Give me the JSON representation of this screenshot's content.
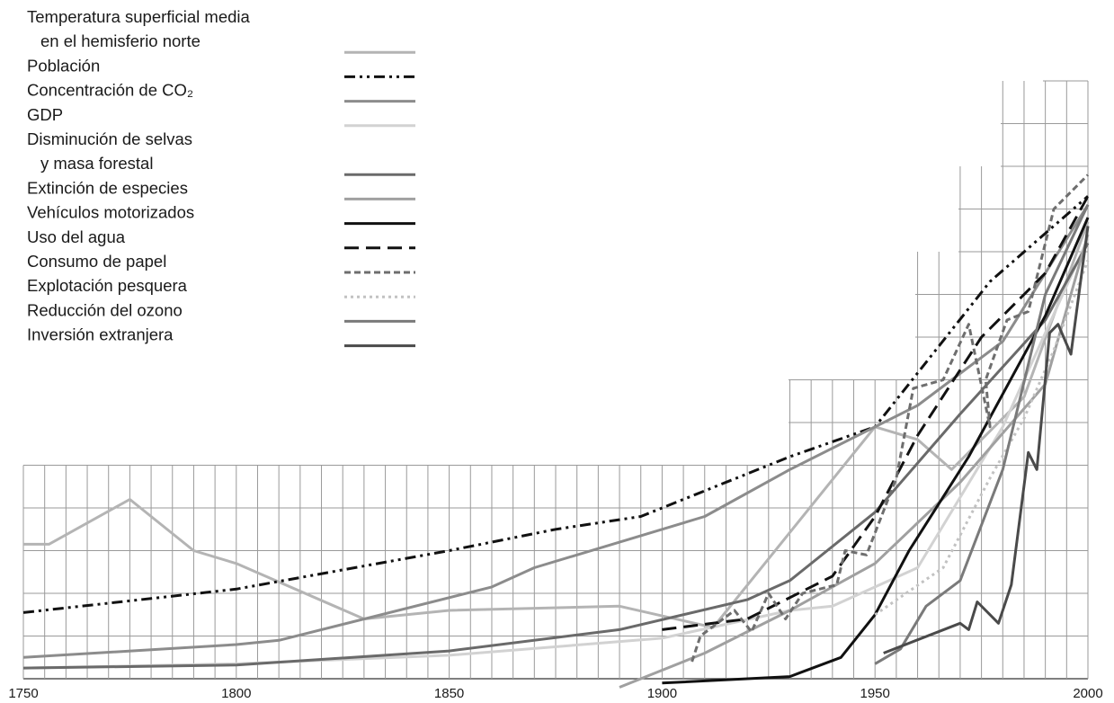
{
  "chart_data": {
    "type": "line",
    "xlim": [
      1750,
      2000
    ],
    "x_ticks": [
      "1750",
      "1800",
      "1850",
      "1900",
      "1950",
      "2000"
    ],
    "grid": true,
    "legend_position": "top-left",
    "series": [
      {
        "name": "Temperatura superficial media en el hemisferio norte",
        "legend_lines": [
          "Temperatura superficial media",
          "en el hemisferio norte"
        ],
        "color": "#b4b4b4",
        "dash": "solid",
        "width": 3,
        "points": [
          [
            1750,
            3.15
          ],
          [
            1756,
            3.15
          ],
          [
            1775,
            4.2
          ],
          [
            1790,
            3.0
          ],
          [
            1800,
            2.7
          ],
          [
            1830,
            1.4
          ],
          [
            1850,
            1.6
          ],
          [
            1890,
            1.7
          ],
          [
            1912,
            1.2
          ],
          [
            1950,
            5.9
          ],
          [
            1960,
            5.6
          ],
          [
            1968,
            4.9
          ],
          [
            1985,
            6.6
          ],
          [
            2000,
            10.7
          ]
        ]
      },
      {
        "name": "Población",
        "legend_lines": [
          "Población"
        ],
        "color": "#111111",
        "dash": "12,5,3,5,3,5",
        "width": 3,
        "points": [
          [
            1750,
            1.55
          ],
          [
            1800,
            2.1
          ],
          [
            1850,
            3.0
          ],
          [
            1875,
            3.5
          ],
          [
            1895,
            3.8
          ],
          [
            1900,
            4.0
          ],
          [
            1930,
            5.2
          ],
          [
            1950,
            5.9
          ],
          [
            1977,
            9.3
          ],
          [
            2000,
            11.3
          ]
        ]
      },
      {
        "name": "Concentración de CO₂",
        "legend_lines": [
          "Concentración de CO₂"
        ],
        "color": "#8c8c8c",
        "dash": "solid",
        "width": 3,
        "points": [
          [
            1750,
            0.5
          ],
          [
            1800,
            0.8
          ],
          [
            1810,
            0.9
          ],
          [
            1860,
            2.15
          ],
          [
            1870,
            2.6
          ],
          [
            1910,
            3.8
          ],
          [
            1930,
            4.9
          ],
          [
            1960,
            6.4
          ],
          [
            1980,
            7.9
          ],
          [
            2000,
            11.1
          ]
        ]
      },
      {
        "name": "GDP",
        "legend_lines": [
          "GDP"
        ],
        "color": "#d2d2d2",
        "dash": "solid",
        "width": 3,
        "points": [
          [
            1750,
            0.25
          ],
          [
            1800,
            0.35
          ],
          [
            1850,
            0.55
          ],
          [
            1900,
            0.95
          ],
          [
            1930,
            1.6
          ],
          [
            1940,
            1.7
          ],
          [
            1960,
            2.6
          ],
          [
            1980,
            5.9
          ],
          [
            2000,
            10.3
          ]
        ]
      },
      {
        "name": "Disminución de selvas y masa forestal",
        "legend_lines": [
          "Disminución de selvas",
          "y masa forestal"
        ],
        "color": "#6a6a6a",
        "dash": "solid",
        "width": 3,
        "points": [
          [
            1750,
            0.25
          ],
          [
            1800,
            0.32
          ],
          [
            1850,
            0.65
          ],
          [
            1890,
            1.15
          ],
          [
            1920,
            1.85
          ],
          [
            1930,
            2.3
          ],
          [
            1950,
            3.9
          ],
          [
            1970,
            6.2
          ],
          [
            1990,
            8.4
          ],
          [
            2000,
            10.2
          ]
        ]
      },
      {
        "name": "Extinción de especies",
        "legend_lines": [
          "Extinción de especies"
        ],
        "color": "#a0a0a0",
        "dash": "solid",
        "width": 3,
        "points": [
          [
            1890,
            -0.2
          ],
          [
            1910,
            0.6
          ],
          [
            1930,
            1.6
          ],
          [
            1950,
            2.7
          ],
          [
            1970,
            4.6
          ],
          [
            1990,
            6.9
          ],
          [
            2000,
            10.4
          ]
        ]
      },
      {
        "name": "Vehículos motorizados",
        "legend_lines": [
          "Vehículos motorizados"
        ],
        "color": "#111111",
        "dash": "solid",
        "width": 3,
        "points": [
          [
            1900,
            -0.1
          ],
          [
            1930,
            0.05
          ],
          [
            1942,
            0.5
          ],
          [
            1950,
            1.5
          ],
          [
            1958,
            3.0
          ],
          [
            1972,
            5.2
          ],
          [
            1990,
            8.5
          ],
          [
            2000,
            10.8
          ]
        ]
      },
      {
        "name": "Uso del agua",
        "legend_lines": [
          "Uso del agua"
        ],
        "color": "#111111",
        "dash": "16,8",
        "width": 3,
        "points": [
          [
            1900,
            1.15
          ],
          [
            1920,
            1.4
          ],
          [
            1940,
            2.4
          ],
          [
            1950,
            3.8
          ],
          [
            1960,
            5.7
          ],
          [
            1975,
            8.0
          ],
          [
            1990,
            9.5
          ],
          [
            2000,
            11.3
          ]
        ]
      },
      {
        "name": "Consumo de papel",
        "legend_lines": [
          "Consumo de papel"
        ],
        "color": "#6e6e6e",
        "dash": "7,4",
        "width": 3,
        "points": [
          [
            1907,
            0.4
          ],
          [
            1909,
            1.0
          ],
          [
            1917,
            1.6
          ],
          [
            1921,
            1.1
          ],
          [
            1925,
            2.0
          ],
          [
            1929,
            1.4
          ],
          [
            1933,
            2.0
          ],
          [
            1941,
            2.2
          ],
          [
            1943,
            3.0
          ],
          [
            1948,
            2.9
          ],
          [
            1955,
            4.7
          ],
          [
            1959,
            6.8
          ],
          [
            1966,
            7.0
          ],
          [
            1972,
            8.3
          ],
          [
            1977,
            5.9
          ],
          [
            1976,
            7.0
          ],
          [
            1981,
            8.4
          ],
          [
            1986,
            8.6
          ],
          [
            1992,
            11.0
          ],
          [
            2000,
            11.8
          ]
        ]
      },
      {
        "name": "Explotación pesquera",
        "legend_lines": [
          "Explotación pesquera"
        ],
        "color": "#c2c2c2",
        "dash": "3,4",
        "width": 3,
        "points": [
          [
            1950,
            1.5
          ],
          [
            1966,
            2.6
          ],
          [
            1977,
            4.7
          ],
          [
            1985,
            6.1
          ],
          [
            1992,
            7.7
          ],
          [
            2000,
            9.8
          ]
        ]
      },
      {
        "name": "Reducción del ozono",
        "legend_lines": [
          "Reducción del ozono"
        ],
        "color": "#7a7a7a",
        "dash": "solid",
        "width": 3,
        "points": [
          [
            1950,
            0.35
          ],
          [
            1956,
            0.7
          ],
          [
            1962,
            1.7
          ],
          [
            1970,
            2.3
          ],
          [
            1980,
            4.9
          ],
          [
            1990,
            9.0
          ],
          [
            2000,
            11.1
          ]
        ]
      },
      {
        "name": "Inversión extranjera",
        "legend_lines": [
          "Inversión extranjera"
        ],
        "color": "#4a4a4a",
        "dash": "solid",
        "width": 3,
        "points": [
          [
            1952,
            0.6
          ],
          [
            1970,
            1.3
          ],
          [
            1972,
            1.15
          ],
          [
            1974,
            1.8
          ],
          [
            1979,
            1.3
          ],
          [
            1982,
            2.2
          ],
          [
            1986,
            5.3
          ],
          [
            1988,
            4.9
          ],
          [
            1991,
            8.1
          ],
          [
            1993,
            8.3
          ],
          [
            1996,
            7.6
          ],
          [
            2000,
            10.6
          ]
        ]
      }
    ]
  }
}
